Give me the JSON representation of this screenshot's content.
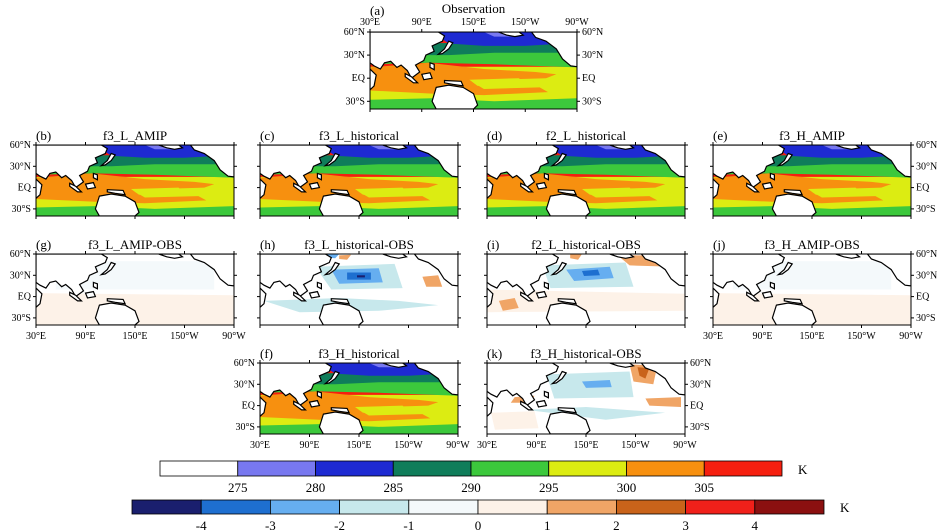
{
  "figure": {
    "panels": [
      {
        "id": "a",
        "tag": "(a)",
        "title": "Observation",
        "kind": "field",
        "xticks": "top",
        "lat_left": true,
        "lat_right": true
      },
      {
        "id": "b",
        "tag": "(b)",
        "title": "f3_L_AMIP",
        "kind": "field",
        "lat_left": true
      },
      {
        "id": "c",
        "tag": "(c)",
        "title": "f3_L_historical",
        "kind": "field"
      },
      {
        "id": "d",
        "tag": "(d)",
        "title": "f2_L_historical",
        "kind": "field"
      },
      {
        "id": "e",
        "tag": "(e)",
        "title": "f3_H_AMIP",
        "kind": "field",
        "lat_right": true
      },
      {
        "id": "g",
        "tag": "(g)",
        "title": "f3_L_AMIP-OBS",
        "kind": "diff0",
        "lat_left": true,
        "xticks": "bottom"
      },
      {
        "id": "h",
        "tag": "(h)",
        "title": "f3_L_historical-OBS",
        "kind": "diff1"
      },
      {
        "id": "i",
        "tag": "(i)",
        "title": "f2_L_historical-OBS",
        "kind": "diff2"
      },
      {
        "id": "j",
        "tag": "(j)",
        "title": "f3_H_AMIP-OBS",
        "kind": "diff0",
        "lat_right": true,
        "xticks": "bottom"
      },
      {
        "id": "f",
        "tag": "(f)",
        "title": "f3_H_historical",
        "kind": "field",
        "lat_left": true,
        "xticks": "bottom"
      },
      {
        "id": "k",
        "tag": "(k)",
        "title": "f3_H_historical-OBS",
        "kind": "diff3",
        "lat_right": true,
        "xticks": "bottom"
      }
    ],
    "lon_ticks": [
      "30°E",
      "90°E",
      "150°E",
      "150°W",
      "90°W"
    ],
    "lat_ticks": [
      "60°N",
      "30°N",
      "EQ",
      "30°S"
    ],
    "colorbar_field": {
      "unit": "K",
      "labels": [
        "275",
        "280",
        "285",
        "290",
        "295",
        "300",
        "305"
      ],
      "colors": [
        "#ffffff",
        "#7878f0",
        "#1e2ad2",
        "#0f7d5a",
        "#3cc83c",
        "#dcec12",
        "#f7900f",
        "#f51f0f"
      ]
    },
    "colorbar_diff": {
      "unit": "K",
      "labels": [
        "-4",
        "-3",
        "-2",
        "-1",
        "0",
        "1",
        "2",
        "3",
        "4"
      ],
      "colors": [
        "#1a1f6e",
        "#1e6fd0",
        "#66aef0",
        "#c7e8ec",
        "#f4f9fb",
        "#fdf2e8",
        "#f0a566",
        "#c9631a",
        "#f0201a",
        "#8b1010"
      ]
    }
  }
}
